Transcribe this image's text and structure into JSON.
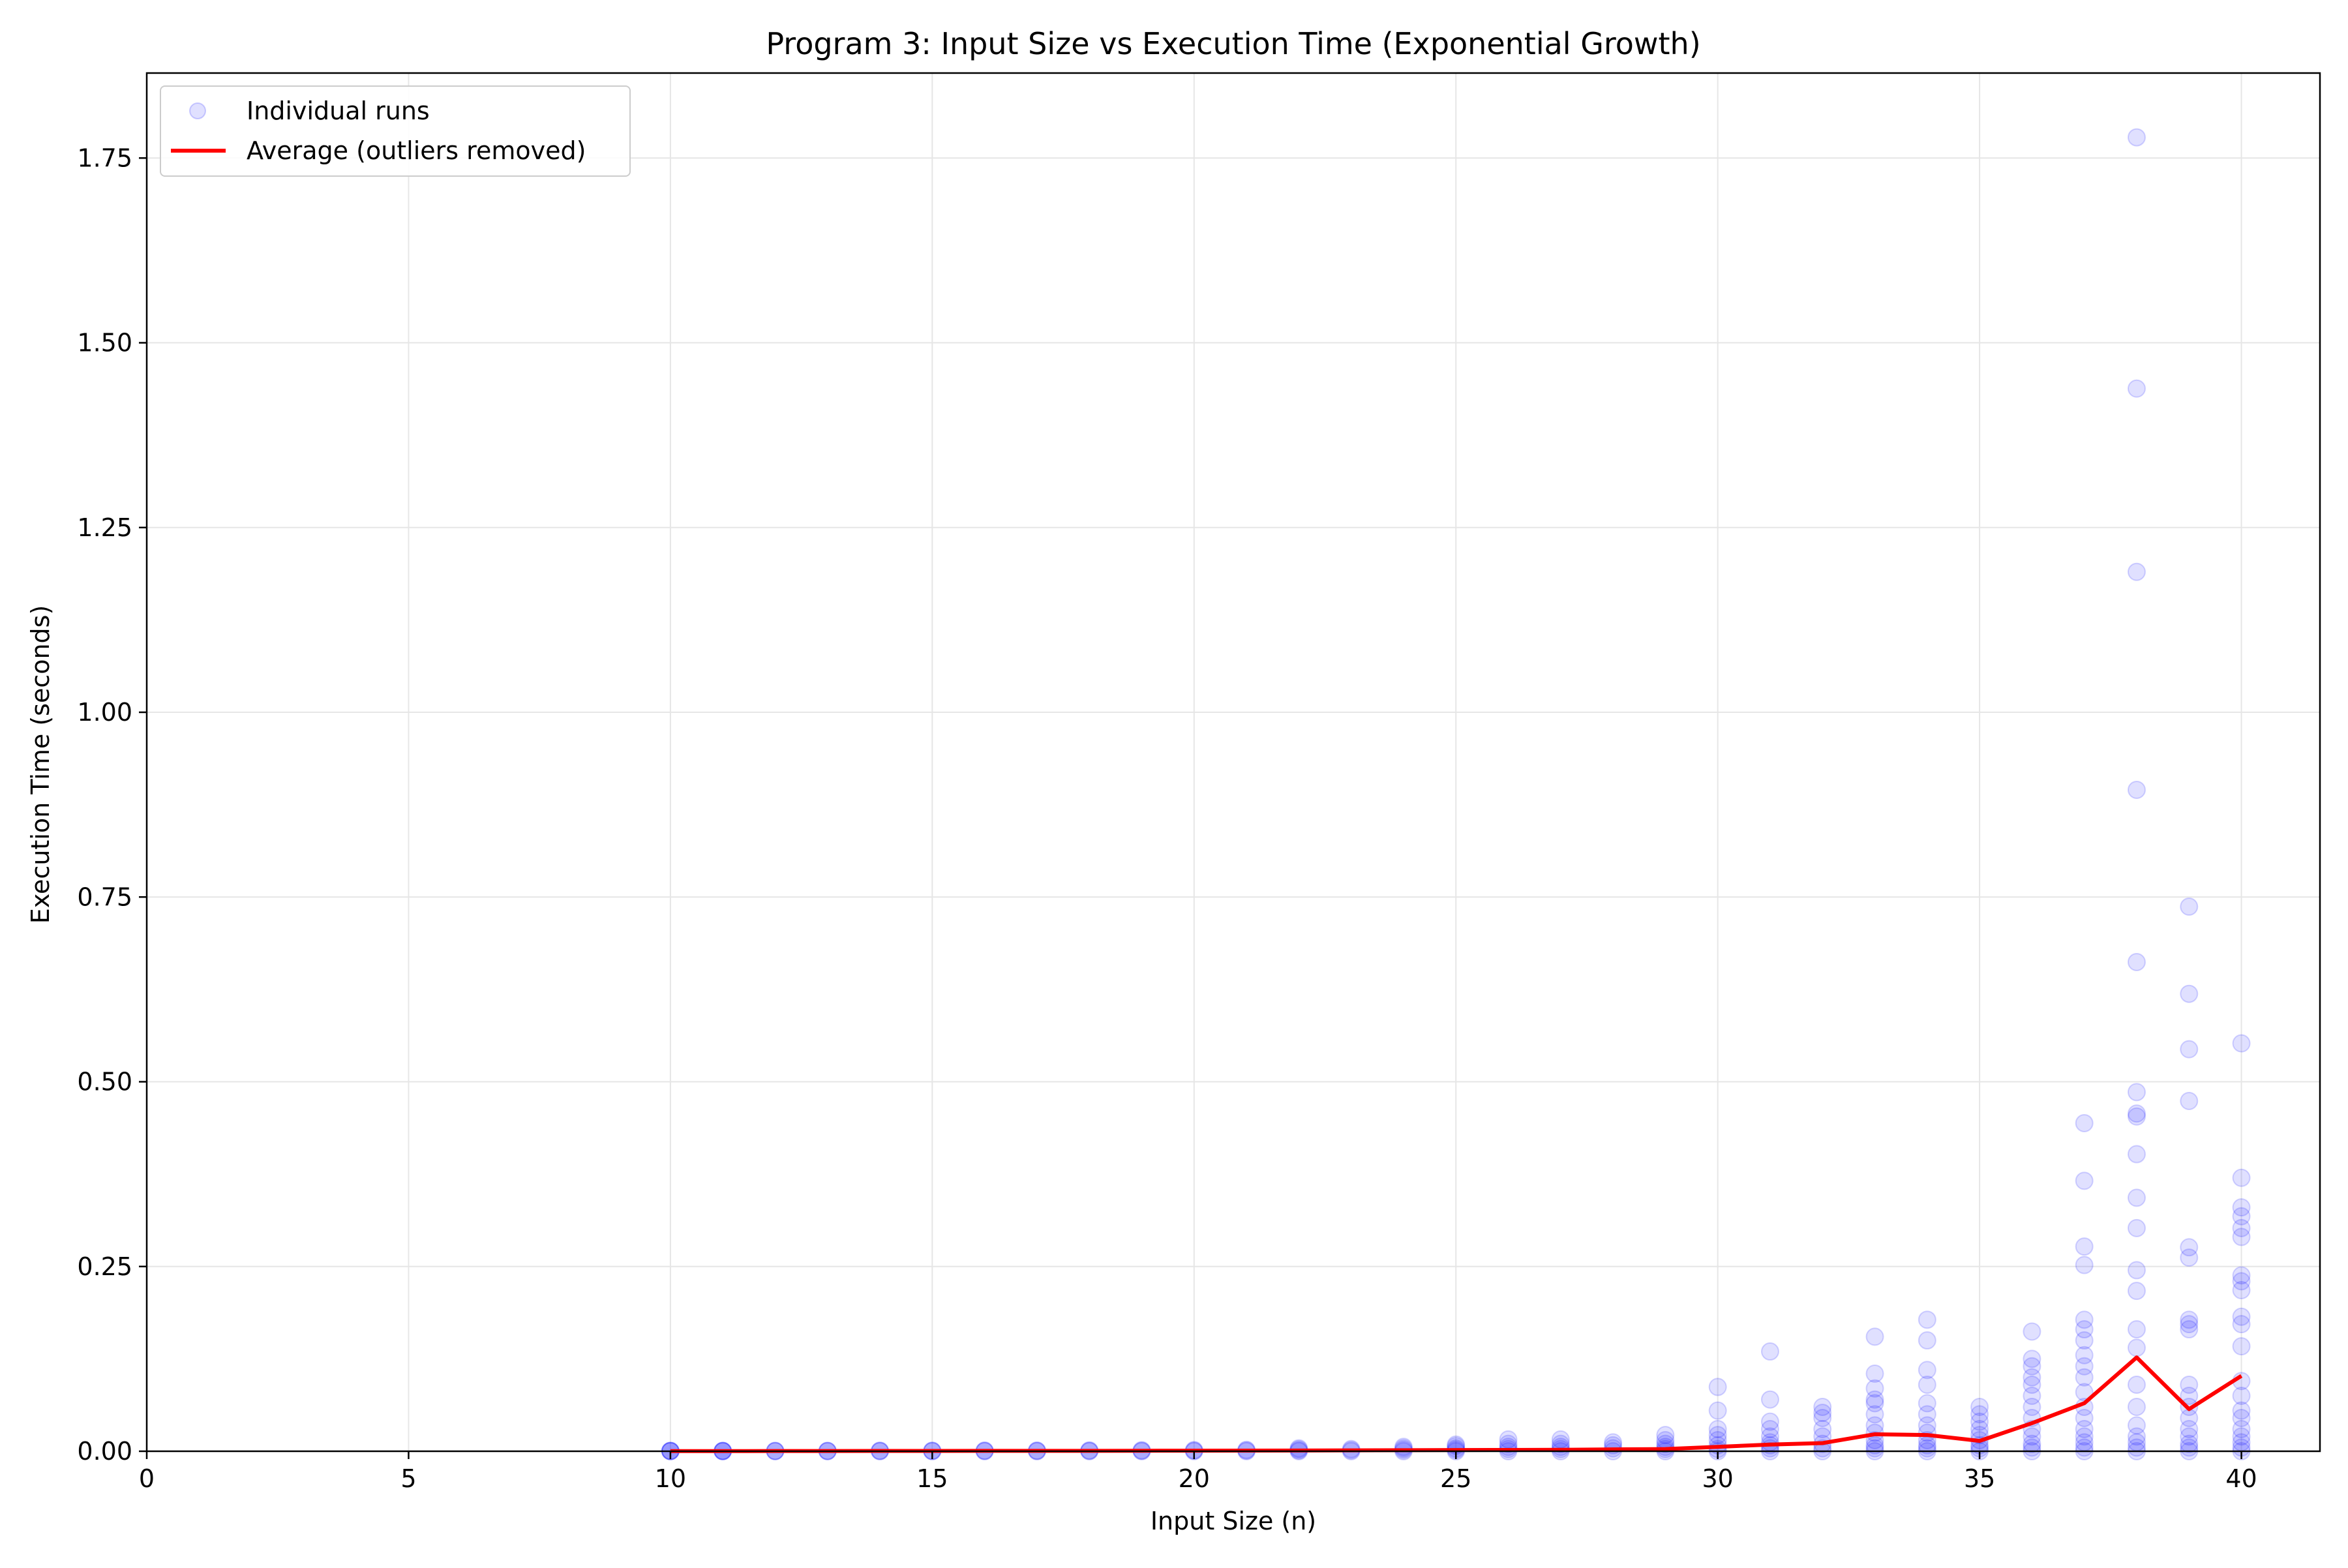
{
  "chart_data": {
    "type": "scatter",
    "title": "Program 3: Input Size vs Execution Time (Exponential Growth)",
    "xlabel": "Input Size (n)",
    "ylabel": "Execution Time (seconds)",
    "xlim": [
      0,
      41.5
    ],
    "ylim": [
      0,
      1.865
    ],
    "xticks": [
      0,
      5,
      10,
      15,
      20,
      25,
      30,
      35,
      40
    ],
    "xtick_labels": [
      "0",
      "5",
      "10",
      "15",
      "20",
      "25",
      "30",
      "35",
      "40"
    ],
    "yticks": [
      0,
      0.25,
      0.5,
      0.75,
      1.0,
      1.25,
      1.5,
      1.75
    ],
    "ytick_labels": [
      "0.00",
      "0.25",
      "0.50",
      "0.75",
      "1.00",
      "1.25",
      "1.50",
      "1.75"
    ],
    "grid": true,
    "legend_position": "top-left",
    "series": [
      {
        "name": "Individual runs",
        "kind": "scatter",
        "color": "#0000ff",
        "opacity": 0.12,
        "points": [
          [
            10,
            0
          ],
          [
            10,
            0.0002
          ],
          [
            10,
            0.0004
          ],
          [
            10,
            0.0006
          ],
          [
            11,
            0
          ],
          [
            11,
            0.0002
          ],
          [
            11,
            0.0004
          ],
          [
            11,
            0.0006
          ],
          [
            12,
            0
          ],
          [
            12,
            0.0003
          ],
          [
            12,
            0.0006
          ],
          [
            13,
            0
          ],
          [
            13,
            0.0003
          ],
          [
            13,
            0.0006
          ],
          [
            14,
            0
          ],
          [
            14,
            0.0004
          ],
          [
            14,
            0.0008
          ],
          [
            15,
            0
          ],
          [
            15,
            0.0004
          ],
          [
            15,
            0.0008
          ],
          [
            16,
            0
          ],
          [
            16,
            0.0005
          ],
          [
            16,
            0.001
          ],
          [
            17,
            0
          ],
          [
            17,
            0.0005
          ],
          [
            17,
            0.001
          ],
          [
            18,
            0
          ],
          [
            18,
            0.0006
          ],
          [
            18,
            0.0012
          ],
          [
            19,
            0
          ],
          [
            19,
            0.0007
          ],
          [
            19,
            0.0014
          ],
          [
            20,
            0
          ],
          [
            20,
            0.0008
          ],
          [
            20,
            0.0016
          ],
          [
            21,
            0
          ],
          [
            21,
            0.001
          ],
          [
            21,
            0.002
          ],
          [
            22,
            0
          ],
          [
            22,
            0.0012
          ],
          [
            22,
            0.0025
          ],
          [
            22,
            0.004
          ],
          [
            23,
            0
          ],
          [
            23,
            0.0015
          ],
          [
            23,
            0.003
          ],
          [
            24,
            0
          ],
          [
            24,
            0.002
          ],
          [
            24,
            0.004
          ],
          [
            24,
            0.006
          ],
          [
            25,
            0
          ],
          [
            25,
            0.002
          ],
          [
            25,
            0.004
          ],
          [
            25,
            0.007
          ],
          [
            25,
            0.009
          ],
          [
            26,
            0
          ],
          [
            26,
            0.003
          ],
          [
            26,
            0.006
          ],
          [
            26,
            0.01
          ],
          [
            26,
            0.016
          ],
          [
            27,
            0
          ],
          [
            27,
            0.003
          ],
          [
            27,
            0.006
          ],
          [
            27,
            0.01
          ],
          [
            27,
            0.016
          ],
          [
            28,
            0
          ],
          [
            28,
            0.004
          ],
          [
            28,
            0.008
          ],
          [
            28,
            0.012
          ],
          [
            29,
            0
          ],
          [
            29,
            0.003
          ],
          [
            29,
            0.006
          ],
          [
            29,
            0.01
          ],
          [
            29,
            0.015
          ],
          [
            29,
            0.022
          ],
          [
            30,
            0
          ],
          [
            30,
            0.003
          ],
          [
            30,
            0.008
          ],
          [
            30,
            0.015
          ],
          [
            30,
            0.022
          ],
          [
            30,
            0.03
          ],
          [
            30,
            0.055
          ],
          [
            30,
            0.087
          ],
          [
            31,
            0
          ],
          [
            31,
            0.004
          ],
          [
            31,
            0.008
          ],
          [
            31,
            0.012
          ],
          [
            31,
            0.02
          ],
          [
            31,
            0.03
          ],
          [
            31,
            0.04
          ],
          [
            31,
            0.07
          ],
          [
            31,
            0.135
          ],
          [
            32,
            0
          ],
          [
            32,
            0.004
          ],
          [
            32,
            0.01
          ],
          [
            32,
            0.02
          ],
          [
            32,
            0.03
          ],
          [
            32,
            0.045
          ],
          [
            32,
            0.052
          ],
          [
            32,
            0.06
          ],
          [
            33,
            0
          ],
          [
            33,
            0.004
          ],
          [
            33,
            0.008
          ],
          [
            33,
            0.015
          ],
          [
            33,
            0.025
          ],
          [
            33,
            0.035
          ],
          [
            33,
            0.05
          ],
          [
            33,
            0.065
          ],
          [
            33,
            0.07
          ],
          [
            33,
            0.085
          ],
          [
            33,
            0.105
          ],
          [
            33,
            0.155
          ],
          [
            34,
            0
          ],
          [
            34,
            0.004
          ],
          [
            34,
            0.008
          ],
          [
            34,
            0.015
          ],
          [
            34,
            0.025
          ],
          [
            34,
            0.035
          ],
          [
            34,
            0.05
          ],
          [
            34,
            0.065
          ],
          [
            34,
            0.09
          ],
          [
            34,
            0.11
          ],
          [
            34,
            0.15
          ],
          [
            34,
            0.178
          ],
          [
            35,
            0
          ],
          [
            35,
            0.004
          ],
          [
            35,
            0.008
          ],
          [
            35,
            0.015
          ],
          [
            35,
            0.022
          ],
          [
            35,
            0.03
          ],
          [
            35,
            0.04
          ],
          [
            35,
            0.05
          ],
          [
            35,
            0.06
          ],
          [
            36,
            0
          ],
          [
            36,
            0.005
          ],
          [
            36,
            0.01
          ],
          [
            36,
            0.02
          ],
          [
            36,
            0.03
          ],
          [
            36,
            0.045
          ],
          [
            36,
            0.06
          ],
          [
            36,
            0.075
          ],
          [
            36,
            0.09
          ],
          [
            36,
            0.1
          ],
          [
            36,
            0.115
          ],
          [
            36,
            0.125
          ],
          [
            36,
            0.162
          ],
          [
            37,
            0
          ],
          [
            37,
            0.005
          ],
          [
            37,
            0.012
          ],
          [
            37,
            0.02
          ],
          [
            37,
            0.03
          ],
          [
            37,
            0.045
          ],
          [
            37,
            0.06
          ],
          [
            37,
            0.08
          ],
          [
            37,
            0.1
          ],
          [
            37,
            0.115
          ],
          [
            37,
            0.13
          ],
          [
            37,
            0.15
          ],
          [
            37,
            0.165
          ],
          [
            37,
            0.178
          ],
          [
            37,
            0.252
          ],
          [
            37,
            0.277
          ],
          [
            37,
            0.366
          ],
          [
            37,
            0.444
          ],
          [
            38,
            0
          ],
          [
            38,
            0.005
          ],
          [
            38,
            0.012
          ],
          [
            38,
            0.02
          ],
          [
            38,
            0.035
          ],
          [
            38,
            0.06
          ],
          [
            38,
            0.09
          ],
          [
            38,
            0.14
          ],
          [
            38,
            0.165
          ],
          [
            38,
            0.217
          ],
          [
            38,
            0.245
          ],
          [
            38,
            0.302
          ],
          [
            38,
            0.343
          ],
          [
            38,
            0.402
          ],
          [
            38,
            0.453
          ],
          [
            38,
            0.457
          ],
          [
            38,
            0.486
          ],
          [
            38,
            0.662
          ],
          [
            38,
            0.895
          ],
          [
            38,
            1.19
          ],
          [
            38,
            1.438
          ],
          [
            38,
            1.778
          ],
          [
            39,
            0
          ],
          [
            39,
            0.005
          ],
          [
            39,
            0.01
          ],
          [
            39,
            0.02
          ],
          [
            39,
            0.03
          ],
          [
            39,
            0.045
          ],
          [
            39,
            0.06
          ],
          [
            39,
            0.075
          ],
          [
            39,
            0.09
          ],
          [
            39,
            0.165
          ],
          [
            39,
            0.172
          ],
          [
            39,
            0.178
          ],
          [
            39,
            0.262
          ],
          [
            39,
            0.276
          ],
          [
            39,
            0.474
          ],
          [
            39,
            0.544
          ],
          [
            39,
            0.619
          ],
          [
            39,
            0.737
          ],
          [
            40,
            0
          ],
          [
            40,
            0.005
          ],
          [
            40,
            0.012
          ],
          [
            40,
            0.02
          ],
          [
            40,
            0.03
          ],
          [
            40,
            0.045
          ],
          [
            40,
            0.055
          ],
          [
            40,
            0.075
          ],
          [
            40,
            0.095
          ],
          [
            40,
            0.142
          ],
          [
            40,
            0.172
          ],
          [
            40,
            0.182
          ],
          [
            40,
            0.218
          ],
          [
            40,
            0.23
          ],
          [
            40,
            0.238
          ],
          [
            40,
            0.29
          ],
          [
            40,
            0.302
          ],
          [
            40,
            0.318
          ],
          [
            40,
            0.33
          ],
          [
            40,
            0.37
          ],
          [
            40,
            0.552
          ]
        ]
      },
      {
        "name": "Average (outliers removed)",
        "kind": "line",
        "color": "#ff0000",
        "x": [
          10,
          11,
          12,
          13,
          14,
          15,
          16,
          17,
          18,
          19,
          20,
          21,
          22,
          23,
          24,
          25,
          26,
          27,
          28,
          29,
          30,
          31,
          32,
          33,
          34,
          35,
          36,
          37,
          38,
          39,
          40
        ],
        "y": [
          0.0002,
          0.0002,
          0.0003,
          0.0003,
          0.0004,
          0.0004,
          0.0005,
          0.0005,
          0.0006,
          0.0007,
          0.0008,
          0.0009,
          0.001,
          0.0012,
          0.0014,
          0.0016,
          0.0018,
          0.002,
          0.0025,
          0.003,
          0.006,
          0.009,
          0.011,
          0.023,
          0.022,
          0.014,
          0.038,
          0.065,
          0.127,
          0.057,
          0.102
        ]
      }
    ]
  }
}
